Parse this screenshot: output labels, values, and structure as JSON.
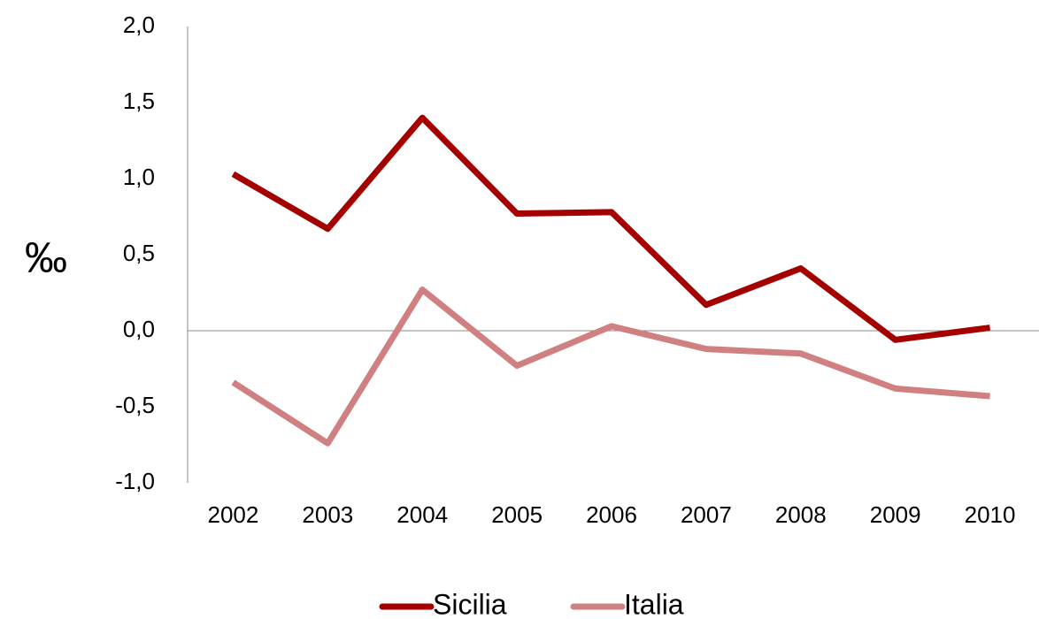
{
  "chart_data": {
    "type": "line",
    "y_label": "‰",
    "categories": [
      "2002",
      "2003",
      "2004",
      "2005",
      "2006",
      "2007",
      "2008",
      "2009",
      "2010"
    ],
    "series": [
      {
        "name": "Sicilia",
        "color": "#a50000",
        "values": [
          1.03,
          0.67,
          1.4,
          0.77,
          0.78,
          0.17,
          0.41,
          -0.06,
          0.02
        ]
      },
      {
        "name": "Italia",
        "color": "#d08080",
        "values": [
          -0.34,
          -0.74,
          0.27,
          -0.23,
          0.03,
          -0.12,
          -0.15,
          -0.38,
          -0.43
        ]
      }
    ],
    "ylim": [
      -1.0,
      2.0
    ],
    "yticks": [
      {
        "value": -1.0,
        "label": "-1,0"
      },
      {
        "value": -0.5,
        "label": "-0,5"
      },
      {
        "value": 0.0,
        "label": "0,0"
      },
      {
        "value": 0.5,
        "label": "0,5"
      },
      {
        "value": 1.0,
        "label": "1,0"
      },
      {
        "value": 1.5,
        "label": "1,5"
      },
      {
        "value": 2.0,
        "label": "2,0"
      }
    ],
    "legend": "bottom",
    "grid": false
  }
}
